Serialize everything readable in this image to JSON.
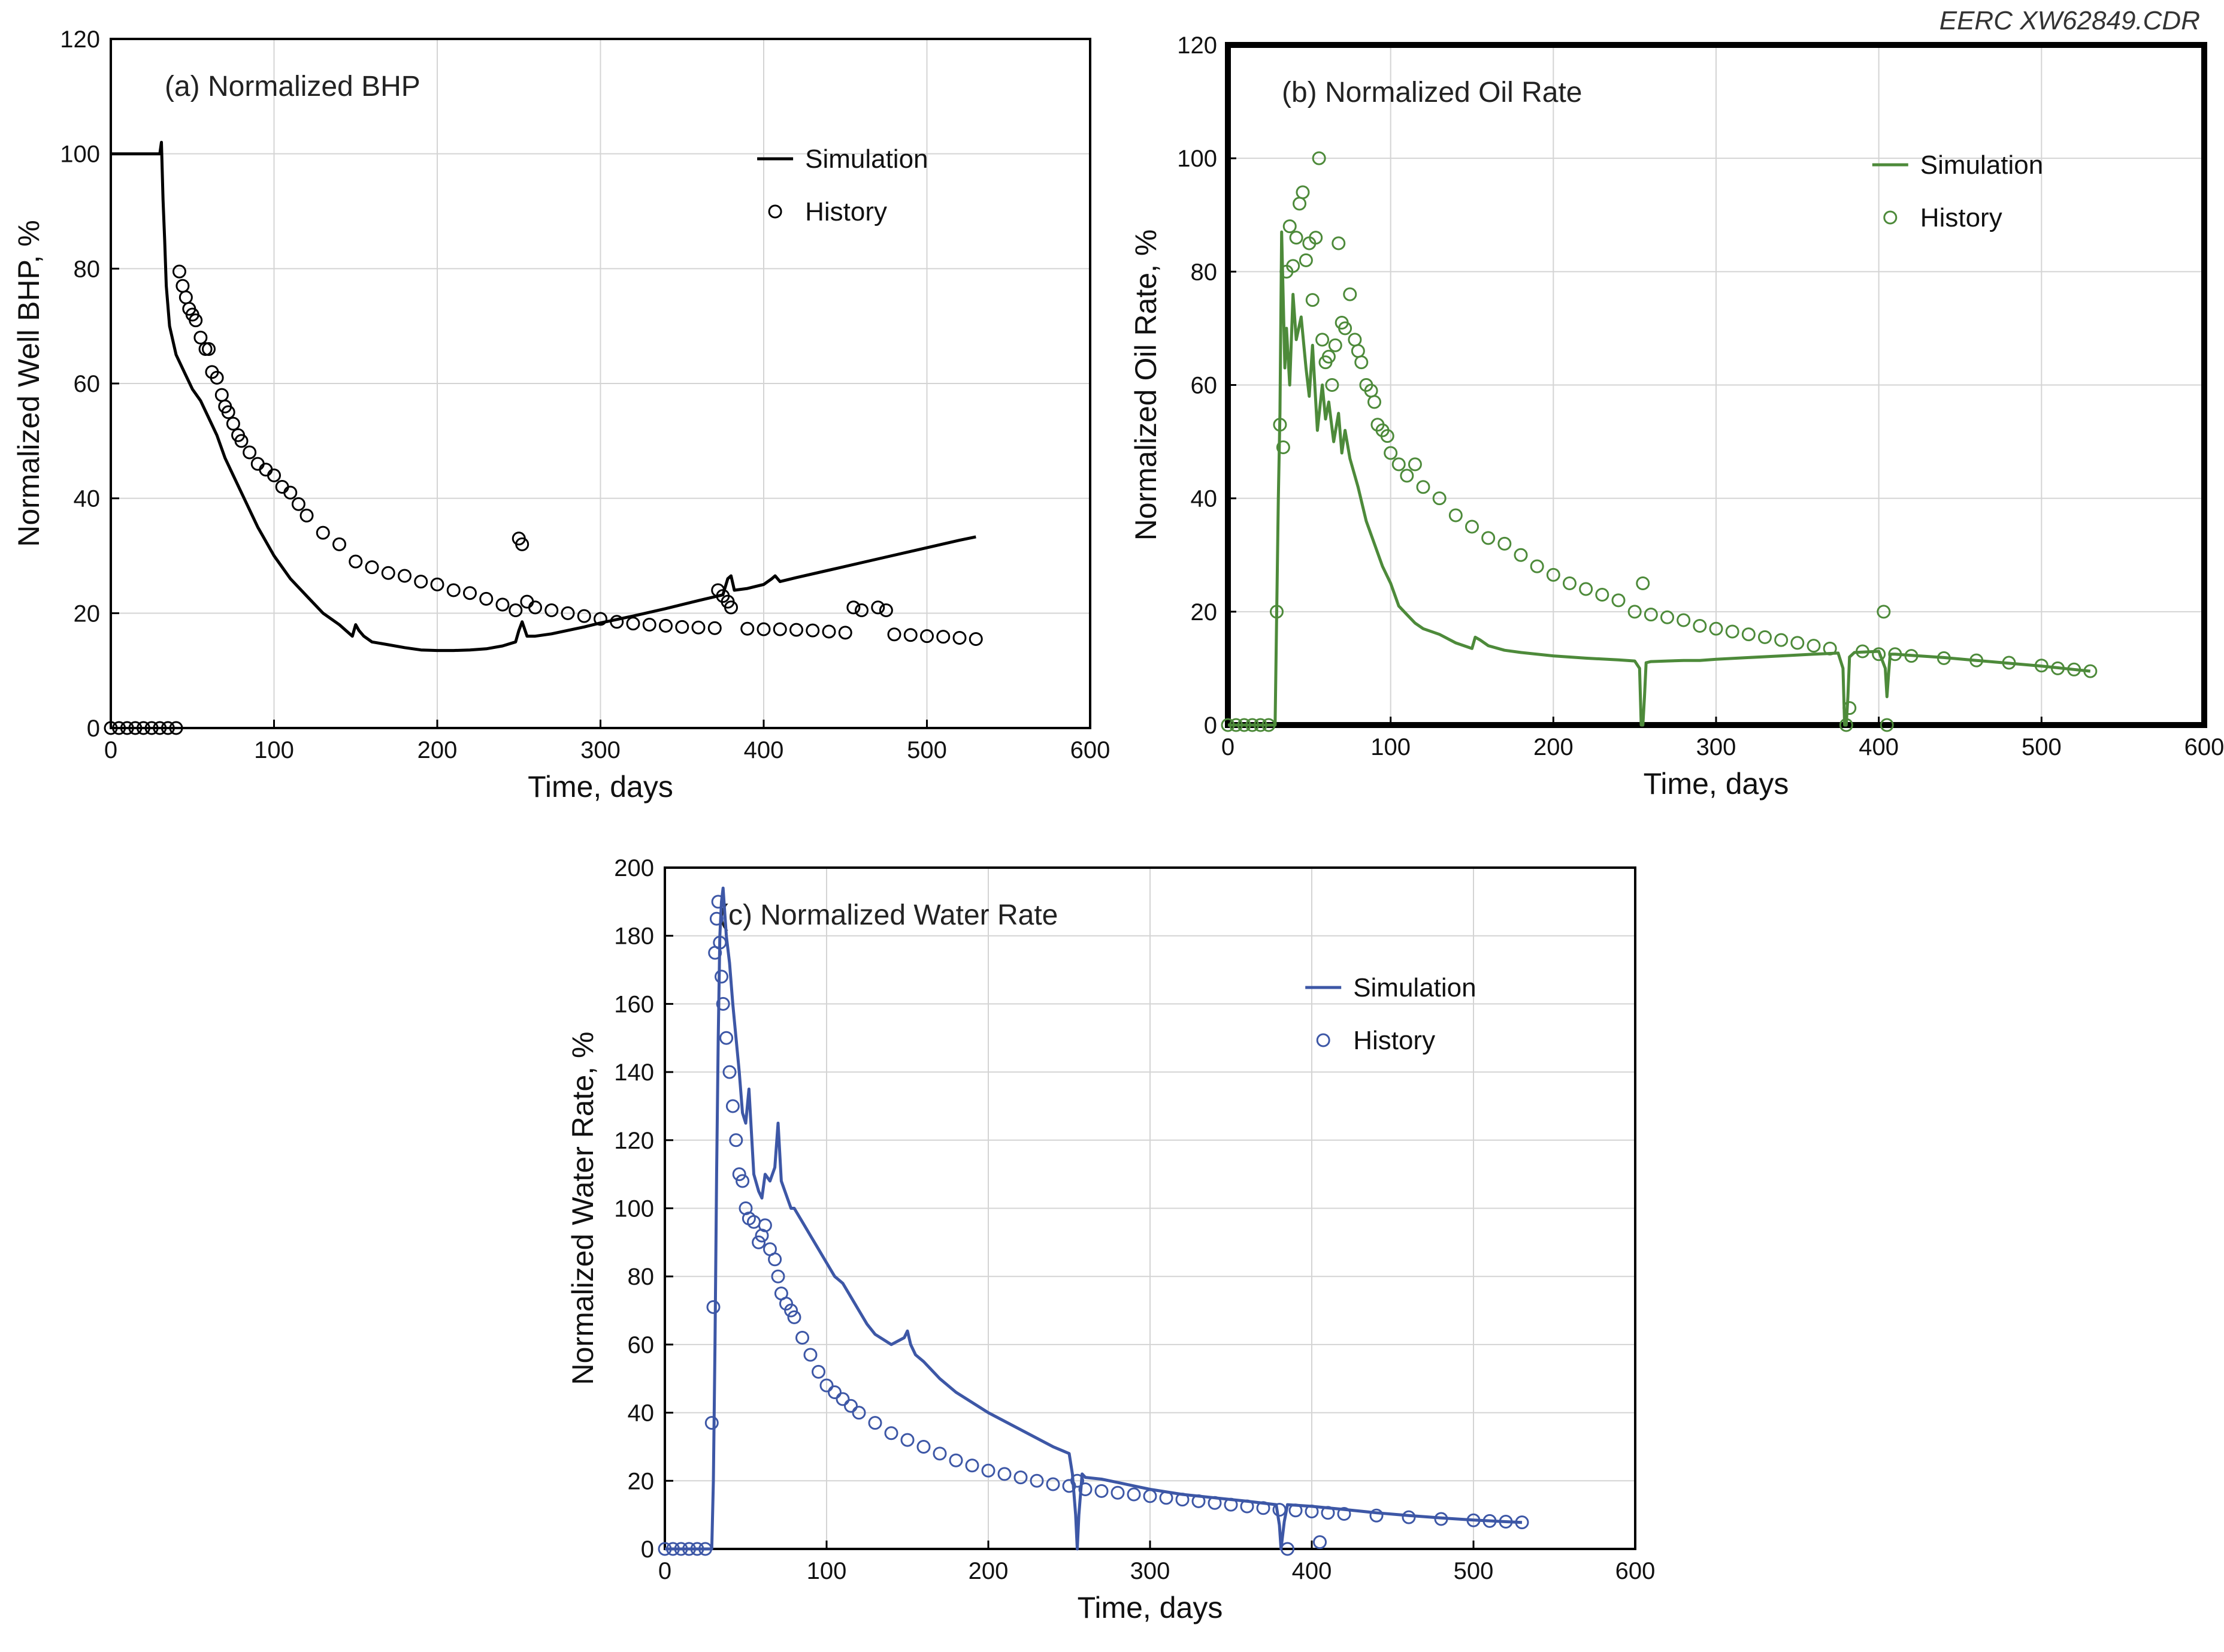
{
  "credit": "EERC XW62849.CDR",
  "chart_data": [
    {
      "id": "a",
      "type": "line",
      "title": "(a) Normalized BHP",
      "xlabel": "Time, days",
      "ylabel": "Normalized Well BHP, %",
      "xlim": [
        0,
        600
      ],
      "ylim": [
        0,
        120
      ],
      "xticks": [
        0,
        100,
        200,
        300,
        400,
        500,
        600
      ],
      "yticks": [
        0,
        20,
        40,
        60,
        80,
        100,
        120
      ],
      "grid": true,
      "legend": [
        "Simulation",
        "History"
      ],
      "legend_position": "top-right",
      "color": "#000000",
      "series": [
        {
          "name": "Simulation",
          "kind": "line",
          "x": [
            0,
            29,
            30,
            31,
            32,
            33,
            34,
            36,
            40,
            45,
            50,
            55,
            60,
            65,
            70,
            80,
            90,
            100,
            110,
            120,
            130,
            140,
            148,
            150,
            152,
            155,
            160,
            170,
            180,
            190,
            200,
            210,
            220,
            230,
            240,
            248,
            250,
            252,
            255,
            260,
            270,
            280,
            290,
            300,
            320,
            340,
            360,
            375,
            378,
            380,
            382,
            390,
            400,
            405,
            407,
            410,
            420,
            440,
            460,
            480,
            500,
            520,
            530
          ],
          "y": [
            100,
            100,
            100,
            102,
            92,
            85,
            77,
            70,
            65,
            62,
            59,
            57,
            54,
            51,
            47,
            41,
            35,
            30,
            26,
            23,
            20,
            18,
            16,
            18,
            17,
            16,
            15,
            14.5,
            14,
            13.6,
            13.5,
            13.5,
            13.6,
            13.8,
            14.3,
            15,
            17,
            18.5,
            16,
            16,
            16.4,
            17,
            17.6,
            18.3,
            19.5,
            20.8,
            22.2,
            23.2,
            26,
            26.5,
            24,
            24.3,
            25,
            26,
            26.5,
            25.5,
            26.2,
            27.5,
            28.8,
            30.1,
            31.4,
            32.7,
            33.3
          ]
        },
        {
          "name": "History",
          "kind": "markers",
          "x": [
            0,
            5,
            10,
            15,
            20,
            25,
            30,
            35,
            40,
            42,
            44,
            46,
            48,
            50,
            52,
            55,
            58,
            60,
            62,
            65,
            68,
            70,
            72,
            75,
            78,
            80,
            85,
            90,
            95,
            100,
            105,
            110,
            115,
            120,
            130,
            140,
            150,
            160,
            170,
            180,
            190,
            200,
            210,
            220,
            230,
            240,
            248,
            250,
            252,
            255,
            260,
            270,
            280,
            290,
            300,
            310,
            320,
            330,
            340,
            350,
            360,
            370,
            372,
            375,
            378,
            380,
            390,
            400,
            410,
            420,
            430,
            440,
            450,
            455,
            460,
            470,
            475,
            480,
            490,
            500,
            510,
            520,
            530
          ],
          "y": [
            0,
            0,
            0,
            0,
            0,
            0,
            0,
            0,
            0,
            79.5,
            77,
            75,
            73,
            72,
            71,
            68,
            66,
            66,
            62,
            61,
            58,
            56,
            55,
            53,
            51,
            50,
            48,
            46,
            45,
            44,
            42,
            41,
            39,
            37,
            34,
            32,
            29,
            28,
            27,
            26.5,
            25.5,
            25,
            24,
            23.5,
            22.5,
            21.5,
            20.5,
            33,
            32,
            22,
            21,
            20.5,
            20,
            19.5,
            19,
            18.5,
            18.2,
            18,
            17.8,
            17.6,
            17.5,
            17.4,
            24,
            23,
            22,
            21,
            17.3,
            17.2,
            17.2,
            17.1,
            17,
            16.8,
            16.6,
            21,
            20.5,
            21,
            20.5,
            16.3,
            16.2,
            16,
            15.9,
            15.7,
            15.5
          ]
        }
      ]
    },
    {
      "id": "b",
      "type": "line",
      "title": "(b) Normalized Oil Rate",
      "xlabel": "Time, days",
      "ylabel": "Normalized Oil Rate, %",
      "xlim": [
        0,
        600
      ],
      "ylim": [
        0,
        120
      ],
      "xticks": [
        0,
        100,
        200,
        300,
        400,
        500,
        600
      ],
      "yticks": [
        0,
        20,
        40,
        60,
        80,
        100,
        120
      ],
      "grid": true,
      "legend": [
        "Simulation",
        "History"
      ],
      "legend_position": "top-right",
      "color": "#4d8a3a",
      "series": [
        {
          "name": "Simulation",
          "kind": "line",
          "x": [
            0,
            29,
            30,
            31,
            32,
            33,
            34,
            35,
            36,
            38,
            40,
            42,
            45,
            48,
            50,
            52,
            55,
            58,
            60,
            62,
            65,
            68,
            70,
            72,
            75,
            80,
            85,
            90,
            95,
            100,
            105,
            110,
            115,
            120,
            130,
            140,
            150,
            152,
            155,
            160,
            170,
            180,
            200,
            220,
            240,
            250,
            253,
            254,
            255,
            256,
            257,
            260,
            270,
            280,
            290,
            300,
            320,
            340,
            360,
            375,
            378,
            379,
            380,
            381,
            382,
            385,
            400,
            404,
            405,
            406,
            407,
            410,
            420,
            440,
            460,
            480,
            500,
            520,
            530
          ],
          "y": [
            0,
            0,
            20,
            40,
            55,
            87,
            75,
            63,
            70,
            60,
            76,
            68,
            72,
            63,
            58,
            67,
            52,
            60,
            54,
            57,
            50,
            55,
            48,
            52,
            47,
            42,
            36,
            32,
            28,
            25,
            21,
            19.5,
            18,
            17,
            16,
            14.5,
            13.5,
            15.5,
            15,
            14,
            13.2,
            12.8,
            12.2,
            11.8,
            11.5,
            11.3,
            10,
            0,
            0,
            5,
            11,
            11.2,
            11.3,
            11.4,
            11.4,
            11.6,
            11.9,
            12.2,
            12.5,
            12.7,
            10,
            0,
            0,
            5,
            12,
            12.8,
            13,
            10,
            5,
            9,
            12.5,
            12.5,
            12.3,
            11.9,
            11.4,
            10.9,
            10.4,
            9.8,
            9.5
          ]
        },
        {
          "name": "History",
          "kind": "markers",
          "x": [
            0,
            5,
            10,
            15,
            20,
            25,
            30,
            32,
            34,
            36,
            38,
            40,
            42,
            44,
            46,
            48,
            50,
            52,
            54,
            56,
            58,
            60,
            62,
            64,
            66,
            68,
            70,
            72,
            75,
            78,
            80,
            82,
            85,
            88,
            90,
            92,
            95,
            98,
            100,
            105,
            110,
            115,
            120,
            130,
            140,
            150,
            160,
            170,
            180,
            190,
            200,
            210,
            220,
            230,
            240,
            250,
            255,
            260,
            270,
            280,
            290,
            300,
            310,
            320,
            330,
            340,
            350,
            360,
            370,
            380,
            382,
            390,
            400,
            403,
            405,
            410,
            420,
            440,
            460,
            480,
            500,
            510,
            520,
            530
          ],
          "y": [
            0,
            0,
            0,
            0,
            0,
            0,
            20,
            53,
            49,
            80,
            88,
            81,
            86,
            92,
            94,
            82,
            85,
            75,
            86,
            100,
            68,
            64,
            65,
            60,
            67,
            85,
            71,
            70,
            76,
            68,
            66,
            64,
            60,
            59,
            57,
            53,
            52,
            51,
            48,
            46,
            44,
            46,
            42,
            40,
            37,
            35,
            33,
            32,
            30,
            28,
            26.5,
            25,
            24,
            23,
            22,
            20,
            25,
            19.5,
            19,
            18.5,
            17.5,
            17,
            16.5,
            16,
            15.5,
            15,
            14.5,
            14,
            13.5,
            0,
            3,
            13,
            12.5,
            20,
            0,
            12.5,
            12.2,
            11.8,
            11.4,
            11,
            10.5,
            10,
            9.8,
            9.5
          ]
        }
      ]
    },
    {
      "id": "c",
      "type": "line",
      "title": "(c) Normalized Water Rate",
      "xlabel": "Time, days",
      "ylabel": "Normalized Water Rate, %",
      "xlim": [
        0,
        600
      ],
      "ylim": [
        0,
        200
      ],
      "xticks": [
        0,
        100,
        200,
        300,
        400,
        500,
        600
      ],
      "yticks": [
        0,
        20,
        40,
        60,
        80,
        100,
        120,
        140,
        160,
        180,
        200
      ],
      "grid": true,
      "legend": [
        "Simulation",
        "History"
      ],
      "legend_position": "top-right",
      "color": "#3d57a6",
      "series": [
        {
          "name": "Simulation",
          "kind": "line",
          "x": [
            0,
            29,
            30,
            31,
            32,
            33,
            34,
            35,
            36,
            38,
            40,
            42,
            44,
            46,
            48,
            50,
            52,
            55,
            58,
            60,
            62,
            65,
            68,
            70,
            72,
            75,
            78,
            80,
            85,
            90,
            95,
            100,
            105,
            110,
            115,
            120,
            125,
            130,
            140,
            148,
            150,
            152,
            155,
            160,
            170,
            180,
            200,
            220,
            240,
            250,
            252,
            254,
            255,
            256,
            258,
            260,
            270,
            280,
            290,
            300,
            320,
            340,
            360,
            378,
            380,
            381,
            383,
            385,
            400,
            420,
            440,
            460,
            480,
            500,
            520,
            530
          ],
          "y": [
            0,
            0,
            20,
            60,
            110,
            150,
            180,
            190,
            194,
            180,
            172,
            160,
            150,
            140,
            128,
            125,
            135,
            110,
            105,
            103,
            110,
            108,
            112,
            125,
            108,
            104,
            100,
            100,
            96,
            92,
            88,
            84,
            80,
            78,
            74,
            70,
            66,
            63,
            60,
            62,
            64,
            60,
            57,
            55,
            50,
            46,
            40,
            35,
            30,
            28,
            22,
            10,
            0,
            10,
            22,
            21,
            20.5,
            19.5,
            18.5,
            17.5,
            16,
            15,
            14,
            13,
            7,
            0,
            8,
            13,
            12.5,
            11.6,
            10.6,
            9.8,
            9.1,
            8.5,
            8,
            7.8
          ]
        },
        {
          "name": "History",
          "kind": "markers",
          "x": [
            0,
            5,
            10,
            15,
            20,
            25,
            29,
            30,
            31,
            32,
            33,
            34,
            35,
            36,
            38,
            40,
            42,
            44,
            46,
            48,
            50,
            52,
            55,
            58,
            60,
            62,
            65,
            68,
            70,
            72,
            75,
            78,
            80,
            85,
            90,
            95,
            100,
            105,
            110,
            115,
            120,
            130,
            140,
            150,
            160,
            170,
            180,
            190,
            200,
            210,
            220,
            230,
            240,
            250,
            255,
            260,
            270,
            280,
            290,
            300,
            310,
            320,
            330,
            340,
            350,
            360,
            370,
            380,
            385,
            390,
            400,
            405,
            410,
            420,
            440,
            460,
            480,
            500,
            510,
            520,
            530
          ],
          "y": [
            0,
            0,
            0,
            0,
            0,
            0,
            37,
            71,
            175,
            185,
            190,
            178,
            168,
            160,
            150,
            140,
            130,
            120,
            110,
            108,
            100,
            97,
            96,
            90,
            92,
            95,
            88,
            85,
            80,
            75,
            72,
            70,
            68,
            62,
            57,
            52,
            48,
            46,
            44,
            42,
            40,
            37,
            34,
            32,
            30,
            28,
            26,
            24.5,
            23,
            22,
            21,
            20,
            19,
            18.5,
            20,
            17.5,
            17,
            16.5,
            16,
            15.5,
            15,
            14.5,
            14,
            13.5,
            13,
            12.5,
            12,
            11.5,
            0,
            11.3,
            11,
            2,
            10.6,
            10.3,
            9.8,
            9.3,
            8.8,
            8.4,
            8.2,
            8,
            7.8
          ]
        }
      ]
    }
  ]
}
